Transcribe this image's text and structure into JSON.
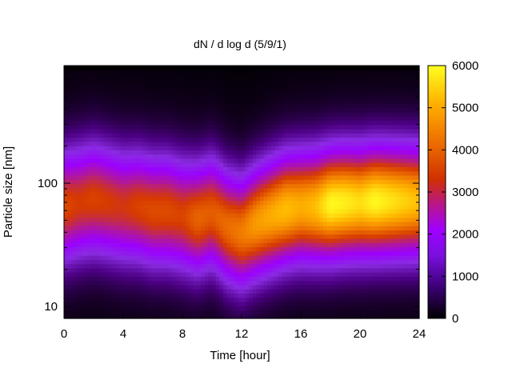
{
  "chart_data": {
    "type": "heatmap",
    "title": "dN / d log d (5/9/1)",
    "xlabel": "Time [hour]",
    "ylabel": "Particle size [nm]",
    "xlim": [
      0,
      24
    ],
    "ylim": [
      8,
      900
    ],
    "y_scale": "log",
    "x_ticks": [
      0,
      4,
      8,
      12,
      16,
      20,
      24
    ],
    "x_tick_labels": [
      "0",
      "4",
      "8",
      "12",
      "16",
      "20",
      "24"
    ],
    "y_ticks": [
      10,
      100
    ],
    "y_tick_labels": [
      "10",
      "100"
    ],
    "colorbar": {
      "range": [
        0,
        6000
      ],
      "ticks": [
        0,
        1000,
        2000,
        3000,
        4000,
        5000,
        6000
      ],
      "tick_labels": [
        "0",
        "1000",
        "2000",
        "3000",
        "4000",
        "5000",
        "6000"
      ],
      "colormap": [
        "#000000",
        "#4b0082",
        "#8a2be2",
        "#9b00ff",
        "#b0189a",
        "#d63a00",
        "#f07800",
        "#ffb400",
        "#ffff20"
      ]
    },
    "time_hours": [
      0,
      1,
      2,
      3,
      4,
      5,
      6,
      7,
      8,
      9,
      10,
      11,
      12,
      13,
      14,
      15,
      16,
      17,
      18,
      19,
      20,
      21,
      22,
      23,
      24
    ],
    "mode_diameter_nm": [
      65,
      70,
      75,
      70,
      65,
      65,
      60,
      60,
      55,
      52,
      58,
      45,
      40,
      48,
      55,
      62,
      65,
      65,
      68,
      70,
      70,
      72,
      72,
      72,
      72
    ],
    "peak_concentration": [
      3600,
      3400,
      3500,
      3400,
      3300,
      3500,
      3600,
      3600,
      3500,
      3900,
      3800,
      4000,
      4200,
      4600,
      4800,
      5000,
      4800,
      5000,
      5600,
      5500,
      5300,
      5600,
      5400,
      5200,
      5000
    ],
    "upper_size_limit_nm": 850,
    "lower_size_limit_nm": 8
  }
}
